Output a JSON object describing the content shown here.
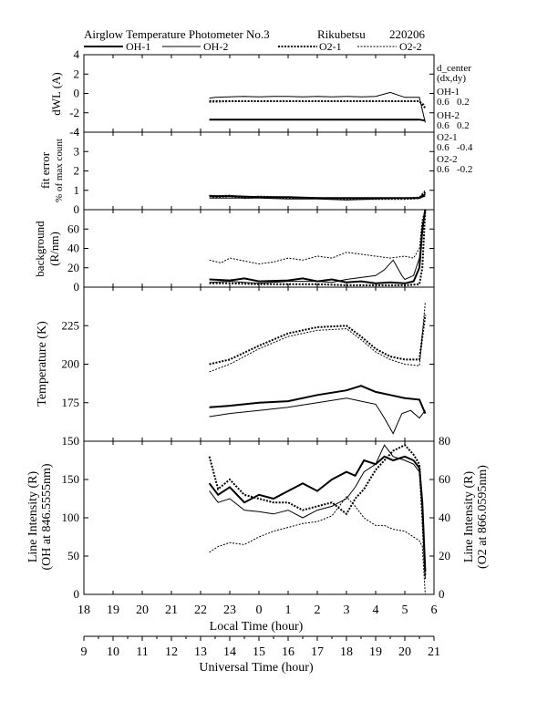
{
  "title": "Airglow Temperature Photometer No.3",
  "site": "Rikubetsu",
  "date_code": "220206",
  "legend": {
    "oh1": "OH-1",
    "oh2": "OH-2",
    "o21": "O2-1",
    "o22": "O2-2"
  },
  "side_info": {
    "header": "d_center",
    "subheader": "(dx,dy)",
    "oh1_label": "OH-1",
    "oh1_val": "0.6   0.2",
    "oh2_label": "OH-2",
    "oh2_val": "0.6   0.2",
    "o21_label": "O2-1",
    "o21_val": "0.6   -0.4",
    "o22_label": "O2-2",
    "o22_val": "0.6   -0.2"
  },
  "panel_labels": {
    "dwl": "dWL (A)",
    "fit1": "fit error",
    "fit2": "% of max count",
    "bg1": "background",
    "bg2": "(R/nm)",
    "temp": "Temperature (K)",
    "li_left1": "Line Intensity (R)",
    "li_left2": "(OH at 846.5555nm)",
    "li_right1": "Line Intensity (R)",
    "li_right2": "(O2 at 866.0595nm)"
  },
  "axis": {
    "local_label": "Local Time (hour)",
    "universal_label": "Universal Time (hour)",
    "local_ticks": [
      "18",
      "19",
      "20",
      "21",
      "22",
      "23",
      "0",
      "1",
      "2",
      "3",
      "4",
      "5",
      "6"
    ],
    "universal_ticks": [
      "9",
      "10",
      "11",
      "12",
      "13",
      "14",
      "15",
      "16",
      "17",
      "18",
      "19",
      "20",
      "21"
    ]
  },
  "chart_data": {
    "type": "line",
    "x_unit": "Local Time (hour), 18 to 30 (=6 next day)",
    "xlim": [
      18,
      30
    ],
    "panels": [
      {
        "name": "dWL",
        "ylabel": "dWL (A)",
        "ylim": [
          -4,
          4
        ],
        "yticks": [
          -4,
          -2,
          0,
          2,
          4
        ],
        "series": [
          {
            "name": "OH-1",
            "x": [
              22.3,
              23,
              24,
              25,
              26,
              27,
              28,
              29,
              29.5,
              29.7
            ],
            "y": [
              -2.7,
              -2.7,
              -2.7,
              -2.7,
              -2.7,
              -2.7,
              -2.7,
              -2.7,
              -2.7,
              -2.8
            ]
          },
          {
            "name": "OH-2",
            "x": [
              22.3,
              22.5,
              23,
              23.5,
              24,
              24.5,
              25,
              25.5,
              26,
              26.5,
              27,
              27.5,
              28,
              28.5,
              29,
              29.5,
              29.7
            ],
            "y": [
              -0.5,
              -0.4,
              -0.35,
              -0.3,
              -0.35,
              -0.3,
              -0.3,
              -0.35,
              -0.3,
              -0.35,
              -0.3,
              -0.35,
              -0.3,
              0.1,
              -0.4,
              -0.4,
              -3.0
            ]
          },
          {
            "name": "O2-1",
            "x": [
              22.3,
              23,
              24,
              25,
              26,
              27,
              28,
              29,
              29.5,
              29.7
            ],
            "y": [
              -0.8,
              -0.8,
              -0.8,
              -0.8,
              -0.8,
              -0.8,
              -0.8,
              -0.8,
              -0.8,
              -1.5
            ]
          },
          {
            "name": "O2-2",
            "x": [
              22.3,
              23,
              24,
              25,
              26,
              27,
              28,
              29,
              29.5,
              29.7
            ],
            "y": [
              -0.9,
              -0.85,
              -0.85,
              -0.85,
              -0.85,
              -0.85,
              -0.85,
              -0.85,
              -0.85,
              -1.2
            ]
          }
        ]
      },
      {
        "name": "fit_error",
        "ylabel": "fit error % of max count",
        "ylim": [
          0,
          4
        ],
        "yticks": [
          0,
          1,
          2,
          3,
          4
        ],
        "series": [
          {
            "name": "OH-1",
            "x": [
              22.3,
              23,
              24,
              25,
              26,
              27,
              28,
              29,
              29.5,
              29.7
            ],
            "y": [
              0.7,
              0.7,
              0.65,
              0.65,
              0.6,
              0.6,
              0.6,
              0.6,
              0.6,
              0.8
            ]
          },
          {
            "name": "OH-2",
            "x": [
              22.3,
              23,
              24,
              25,
              26,
              27,
              28,
              29,
              29.5,
              29.7
            ],
            "y": [
              0.6,
              0.6,
              0.6,
              0.55,
              0.55,
              0.5,
              0.55,
              0.6,
              0.6,
              0.7
            ]
          },
          {
            "name": "O2-1",
            "x": [
              22.3,
              22.5,
              23,
              23.5,
              24,
              25,
              26,
              27,
              28,
              29,
              29.5,
              29.7
            ],
            "y": [
              0.7,
              0.65,
              0.7,
              0.6,
              0.65,
              0.6,
              0.6,
              0.55,
              0.55,
              0.55,
              0.6,
              0.9
            ]
          },
          {
            "name": "O2-2",
            "x": [
              22.3,
              22.5,
              23,
              23.5,
              24,
              25,
              26,
              27,
              28,
              29,
              29.5,
              29.7
            ],
            "y": [
              0.75,
              0.7,
              0.75,
              0.65,
              0.7,
              0.65,
              0.6,
              0.6,
              0.6,
              0.6,
              0.65,
              1.0
            ]
          }
        ]
      },
      {
        "name": "background",
        "ylabel": "background (R/nm)",
        "ylim": [
          0,
          80
        ],
        "yticks": [
          0,
          20,
          40,
          60
        ],
        "series": [
          {
            "name": "OH-1",
            "x": [
              22.3,
              23,
              23.5,
              24,
              25,
              25.5,
              26,
              26.5,
              27,
              27.5,
              28,
              28.5,
              29,
              29.3,
              29.5,
              29.6,
              29.7
            ],
            "y": [
              8,
              7,
              9,
              6,
              7,
              9,
              6,
              8,
              5,
              6,
              4,
              5,
              4,
              6,
              20,
              60,
              80
            ]
          },
          {
            "name": "OH-2",
            "x": [
              22.3,
              23,
              23.5,
              24,
              25,
              26,
              26.5,
              27,
              27.5,
              28,
              28.3,
              28.6,
              28.9,
              29,
              29.3,
              29.5,
              29.7
            ],
            "y": [
              5,
              6,
              5,
              4,
              6,
              6,
              5,
              8,
              10,
              12,
              18,
              28,
              12,
              8,
              12,
              30,
              80
            ]
          },
          {
            "name": "O2-1",
            "x": [
              22.3,
              23,
              24,
              25,
              26,
              27,
              28,
              29,
              29.5,
              29.6,
              29.7
            ],
            "y": [
              4,
              4,
              3,
              3,
              3,
              2,
              2,
              2,
              3,
              20,
              80
            ]
          },
          {
            "name": "O2-2",
            "x": [
              22.3,
              22.7,
              23,
              23.5,
              24,
              24.5,
              25,
              25.5,
              26,
              26.5,
              27,
              27.5,
              28,
              28.5,
              29,
              29.3,
              29.5,
              29.6,
              29.7
            ],
            "y": [
              28,
              25,
              30,
              27,
              24,
              26,
              30,
              28,
              32,
              30,
              36,
              34,
              32,
              30,
              32,
              30,
              40,
              70,
              80
            ]
          }
        ]
      },
      {
        "name": "temperature",
        "ylabel": "Temperature (K)",
        "ylim": [
          150,
          250
        ],
        "yticks": [
          150,
          175,
          200,
          225
        ],
        "series": [
          {
            "name": "OH-1",
            "x": [
              22.3,
              23,
              24,
              25,
              26,
              27,
              27.5,
              28,
              28.5,
              29,
              29.5,
              29.7
            ],
            "y": [
              172,
              173,
              175,
              176,
              180,
              183,
              186,
              182,
              180,
              178,
              177,
              168
            ]
          },
          {
            "name": "OH-2",
            "x": [
              22.3,
              23,
              24,
              25,
              26,
              27,
              27.5,
              28,
              28.3,
              28.6,
              28.9,
              29.2,
              29.5,
              29.7
            ],
            "y": [
              166,
              168,
              170,
              172,
              175,
              178,
              176,
              174,
              165,
              155,
              168,
              170,
              165,
              170
            ]
          },
          {
            "name": "O2-1",
            "x": [
              22.3,
              23,
              24,
              25,
              26,
              27,
              27.5,
              28,
              28.5,
              29,
              29.5,
              29.7
            ],
            "y": [
              200,
              203,
              212,
              220,
              224,
              225,
              218,
              210,
              205,
              203,
              203,
              232
            ]
          },
          {
            "name": "O2-2",
            "x": [
              22.3,
              23,
              24,
              25,
              26,
              27,
              27.5,
              28,
              28.5,
              29,
              29.5,
              29.7
            ],
            "y": [
              195,
              200,
              210,
              218,
              222,
              223,
              216,
              208,
              203,
              200,
              199,
              240
            ]
          }
        ]
      },
      {
        "name": "line_intensity",
        "ylabel": "Line Intensity (R) (OH at 846.5555nm)",
        "ylabel_right": "Line Intensity (R) (O2 at 866.0595nm)",
        "ylim": [
          0,
          200
        ],
        "ylim_right": [
          0,
          80
        ],
        "yticks": [
          0,
          50,
          100,
          150
        ],
        "yticks_right": [
          0,
          20,
          40,
          60,
          80
        ],
        "series": [
          {
            "name": "OH-1",
            "axis": "left",
            "x": [
              22.3,
              22.6,
              23,
              23.5,
              24,
              24.5,
              25,
              25.5,
              26,
              26.5,
              27,
              27.3,
              27.6,
              28,
              28.3,
              28.6,
              29,
              29.3,
              29.5,
              29.6,
              29.7
            ],
            "y": [
              145,
              130,
              140,
              120,
              130,
              125,
              135,
              145,
              135,
              150,
              160,
              155,
              175,
              170,
              180,
              175,
              180,
              175,
              165,
              120,
              30
            ]
          },
          {
            "name": "OH-2",
            "axis": "left",
            "x": [
              22.3,
              22.6,
              23,
              23.5,
              24,
              24.5,
              25,
              25.5,
              26,
              26.5,
              27,
              27.3,
              27.6,
              28,
              28.3,
              28.6,
              29,
              29.3,
              29.5,
              29.6,
              29.7
            ],
            "y": [
              135,
              120,
              125,
              110,
              108,
              105,
              110,
              100,
              110,
              115,
              125,
              140,
              160,
              170,
              195,
              180,
              175,
              170,
              160,
              110,
              20
            ]
          },
          {
            "name": "O2-1",
            "axis": "right",
            "x": [
              22.3,
              22.6,
              23,
              23.5,
              24,
              24.5,
              25,
              25.5,
              26,
              26.5,
              27,
              27.3,
              27.6,
              28,
              28.3,
              28.6,
              29,
              29.3,
              29.5,
              29.6,
              29.7
            ],
            "y": [
              72,
              55,
              60,
              52,
              50,
              48,
              48,
              44,
              46,
              48,
              42,
              50,
              55,
              65,
              70,
              75,
              78,
              73,
              68,
              40,
              10
            ]
          },
          {
            "name": "O2-2",
            "axis": "right",
            "x": [
              22.3,
              22.6,
              23,
              23.5,
              24,
              24.5,
              25,
              25.5,
              26,
              26.5,
              27,
              27.3,
              27.6,
              28,
              28.3,
              28.6,
              29,
              29.3,
              29.5,
              29.6,
              29.7
            ],
            "y": [
              22,
              25,
              27,
              26,
              30,
              33,
              35,
              37,
              38,
              41,
              51,
              46,
              40,
              36,
              36,
              34,
              33,
              30,
              28,
              25,
              0
            ]
          }
        ]
      }
    ]
  }
}
